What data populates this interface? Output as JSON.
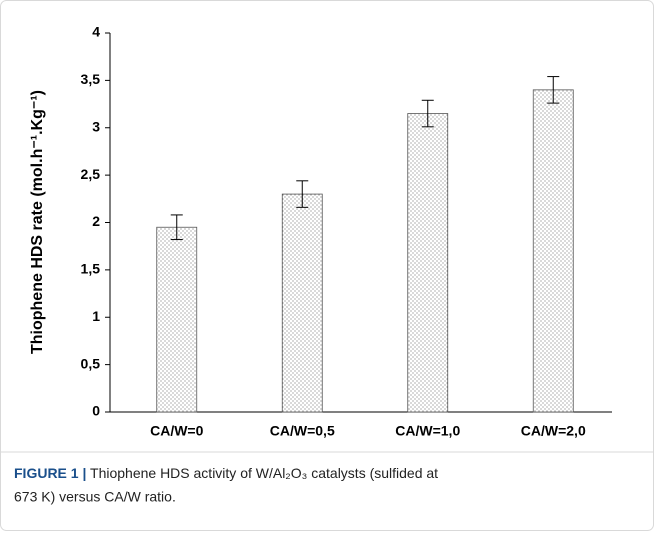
{
  "chart_data": {
    "type": "bar",
    "ylabel": "Thiophene HDS rate (mol.h⁻¹.Kg⁻¹)",
    "categories": [
      "CA/W=0",
      "CA/W=0,5",
      "CA/W=1,0",
      "CA/W=2,0"
    ],
    "values": [
      1.95,
      2.3,
      3.15,
      3.4
    ],
    "errors": [
      0.13,
      0.14,
      0.14,
      0.14
    ],
    "color": "#ffffff",
    "pattern_color": "#7a7a7a",
    "ylim": [
      0,
      4
    ],
    "yticks": [
      0,
      {
        "value": 0.5,
        "label": "0,5"
      },
      1,
      {
        "value": 1.5,
        "label": "1,5"
      },
      2,
      {
        "value": 2.5,
        "label": "2,5"
      },
      3,
      {
        "value": 3.5,
        "label": "3,5"
      },
      4
    ],
    "grid": false
  },
  "caption": {
    "label": "FIGURE 1 |",
    "text_line1": "Thiophene HDS activity of W/Al₂O₃ catalysts (sulfided at",
    "text_line2": "673 K) versus CA/W ratio."
  }
}
